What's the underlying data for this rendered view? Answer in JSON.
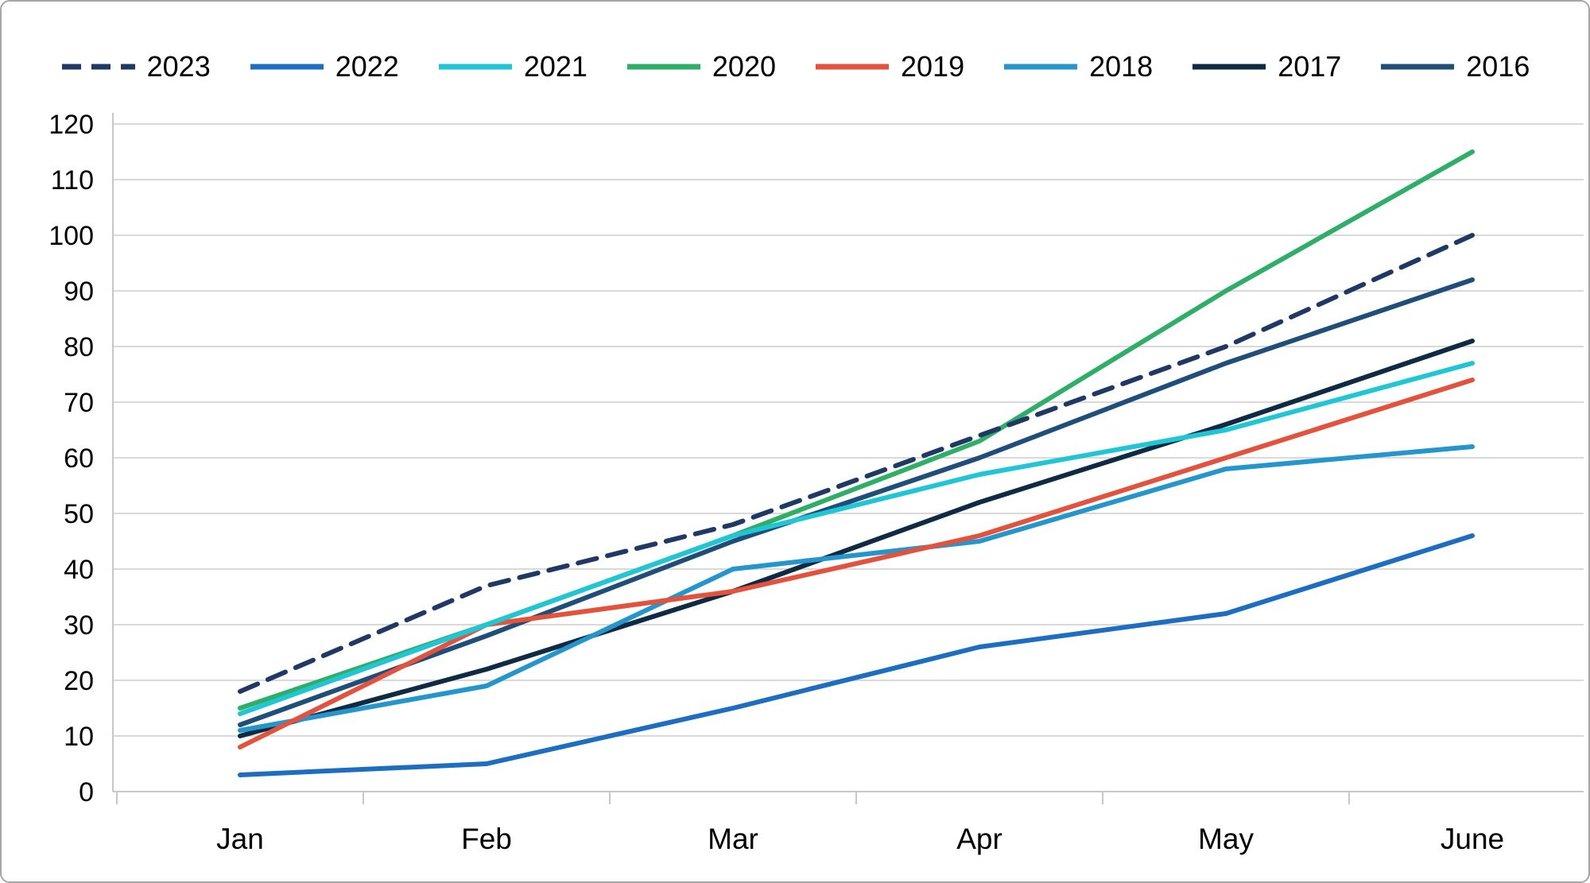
{
  "chart_data": {
    "type": "line",
    "title": "",
    "categories": [
      "Jan",
      "Feb",
      "Mar",
      "Apr",
      "May",
      "June"
    ],
    "y_ticks": [
      0,
      10,
      20,
      30,
      40,
      50,
      60,
      70,
      80,
      90,
      100,
      110,
      120
    ],
    "ylim": [
      0,
      120
    ],
    "grid": true,
    "legend_position": "top",
    "series": [
      {
        "name": "2023",
        "color": "#1F3864",
        "dash": true,
        "values": [
          18,
          37,
          48,
          64,
          80,
          100
        ]
      },
      {
        "name": "2022",
        "color": "#1D6EC1",
        "dash": false,
        "values": [
          3,
          5,
          15,
          26,
          32,
          46
        ]
      },
      {
        "name": "2021",
        "color": "#21C6D5",
        "dash": false,
        "values": [
          14,
          30,
          46,
          57,
          65,
          77
        ]
      },
      {
        "name": "2020",
        "color": "#2FAE68",
        "dash": false,
        "values": [
          15,
          30,
          46,
          63,
          90,
          115
        ]
      },
      {
        "name": "2019",
        "color": "#E2523D",
        "dash": false,
        "values": [
          8,
          30,
          36,
          46,
          60,
          74
        ]
      },
      {
        "name": "2018",
        "color": "#2596CB",
        "dash": false,
        "values": [
          11,
          19,
          40,
          45,
          58,
          62
        ]
      },
      {
        "name": "2017",
        "color": "#0F2A43",
        "dash": false,
        "values": [
          10,
          22,
          36,
          52,
          66,
          81
        ]
      },
      {
        "name": "2016",
        "color": "#1F4E79",
        "dash": false,
        "values": [
          12,
          28,
          45,
          60,
          77,
          92
        ]
      }
    ]
  },
  "colors": {
    "gridline": "#d9d9d9",
    "axis": "#c8c8c8",
    "text": "#000000",
    "border": "#a6a6a6",
    "background": "#ffffff"
  }
}
